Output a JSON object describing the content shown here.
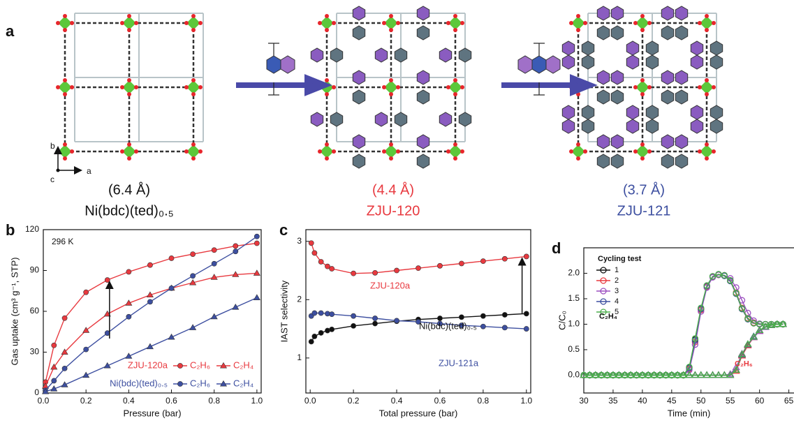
{
  "panel_a": {
    "label": "a",
    "axes": [
      "b",
      "a",
      "c"
    ],
    "structures": [
      {
        "pore": "(6.4 Å)",
        "name": "Ni(bdc)(ted)₀.₅"
      },
      {
        "pore": "(4.4 Å)",
        "name": "ZJU-120"
      },
      {
        "pore": "(3.7 Å)",
        "name": "ZJU-121"
      }
    ]
  },
  "chart_data": [
    {
      "panel": "b",
      "type": "line",
      "annotation": "296 K",
      "xlabel": "Pressure (bar)",
      "ylabel": "Gas uptake (cm³ g⁻¹, STP)",
      "xlim": [
        0,
        1.02
      ],
      "ylim": [
        0,
        120
      ],
      "xticks": [
        {
          "value": 0,
          "label": "0.0"
        },
        0.2,
        0.4,
        0.6,
        0.8,
        {
          "value": 1,
          "label": "1.0"
        }
      ],
      "yticks": [
        0,
        30,
        60,
        90,
        120
      ],
      "x": [
        0.01,
        0.05,
        0.1,
        0.2,
        0.3,
        0.4,
        0.5,
        0.6,
        0.7,
        0.8,
        0.9,
        1.0
      ],
      "legend_groups": [
        "ZJU-120a",
        "Ni(bdc)(ted)₀.₅"
      ],
      "series": [
        {
          "name": "C₂H₆",
          "group": 0,
          "color": "#e8393f",
          "marker": "circle",
          "values": [
            8,
            35,
            55,
            74,
            83,
            89,
            94,
            99,
            102,
            105,
            108,
            110
          ]
        },
        {
          "name": "C₂H₄",
          "group": 0,
          "color": "#e8393f",
          "marker": "triangle",
          "values": [
            5,
            19,
            30,
            46,
            58,
            66,
            72,
            77,
            81,
            85,
            87,
            88
          ]
        },
        {
          "name": "C₂H₆",
          "group": 1,
          "color": "#3d4fa0",
          "marker": "circle",
          "values": [
            2,
            9,
            18,
            32,
            44,
            56,
            67,
            77,
            86,
            95,
            104,
            115
          ]
        },
        {
          "name": "C₂H₄",
          "group": 1,
          "color": "#3d4fa0",
          "marker": "triangle",
          "values": [
            1,
            3,
            6,
            13,
            20,
            27,
            34,
            41,
            48,
            56,
            63,
            70
          ]
        }
      ],
      "arrow": {
        "x": 0.31,
        "from": 40,
        "to": 83
      }
    },
    {
      "panel": "c",
      "type": "line",
      "xlabel": "Total pressure (bar)",
      "ylabel": "IAST selectivity",
      "xlim": [
        -0.02,
        1.02
      ],
      "ylim": [
        0.4,
        3.2
      ],
      "xticks": [
        {
          "value": 0,
          "label": "0.0"
        },
        0.2,
        0.4,
        0.6,
        0.8,
        {
          "value": 1,
          "label": "1.0"
        }
      ],
      "yticks": [
        1,
        2,
        3
      ],
      "x": [
        0.005,
        0.02,
        0.05,
        0.08,
        0.1,
        0.2,
        0.3,
        0.4,
        0.5,
        0.6,
        0.7,
        0.8,
        0.9,
        1.0
      ],
      "series": [
        {
          "name": "ZJU-120a",
          "color": "#e8393f",
          "marker": "circle",
          "values": [
            2.97,
            2.8,
            2.65,
            2.57,
            2.53,
            2.45,
            2.46,
            2.5,
            2.54,
            2.58,
            2.62,
            2.66,
            2.7,
            2.74
          ]
        },
        {
          "name": "Ni(bdc)(ted)₀.₅",
          "color": "#111111",
          "marker": "circle",
          "values": [
            1.28,
            1.37,
            1.43,
            1.47,
            1.49,
            1.55,
            1.59,
            1.63,
            1.66,
            1.68,
            1.7,
            1.72,
            1.74,
            1.76
          ]
        },
        {
          "name": "ZJU-121a",
          "color": "#3d4fa0",
          "marker": "circle",
          "values": [
            1.72,
            1.77,
            1.77,
            1.76,
            1.75,
            1.72,
            1.68,
            1.64,
            1.62,
            1.59,
            1.56,
            1.54,
            1.52,
            1.5
          ]
        }
      ],
      "arrow": {
        "x": 0.98,
        "from": 1.76,
        "to": 2.74
      }
    },
    {
      "panel": "d",
      "type": "line",
      "open_markers": true,
      "xlabel": "Time (min)",
      "ylabel": "C/C₀",
      "legend_title": "Cycling test",
      "xlim": [
        30,
        66
      ],
      "ylim": [
        -0.35,
        2.5
      ],
      "xticks": [
        30,
        35,
        40,
        45,
        50,
        55,
        60,
        65
      ],
      "yticks": [
        {
          "value": 0,
          "label": "0.0"
        },
        0.5,
        {
          "value": 1,
          "label": "1.0"
        },
        1.5,
        {
          "value": 2,
          "label": "2.0"
        }
      ],
      "curve_labels": [
        "C₂H₄",
        "C₂H₆"
      ],
      "curve_markers": [
        "circle",
        "triangle"
      ],
      "x": [
        30,
        31,
        32,
        33,
        34,
        35,
        36,
        37,
        38,
        39,
        40,
        41,
        42,
        43,
        44,
        45,
        46,
        47,
        48,
        49,
        50,
        51,
        52,
        53,
        54,
        55,
        56,
        57,
        58,
        59,
        60,
        61,
        62,
        63,
        64
      ],
      "series": [
        {
          "name": "1",
          "color": "#111111",
          "curves": [
            {
              "values": [
                0,
                0,
                0,
                0,
                0,
                0,
                0,
                0,
                0,
                0,
                0,
                0,
                0,
                0,
                0,
                0,
                0,
                0,
                0.15,
                0.7,
                1.3,
                1.75,
                1.93,
                1.97,
                1.95,
                1.85,
                1.6,
                1.3,
                1.1,
                1.02,
                1.0,
                1.0,
                1.0,
                1.0,
                1.0
              ]
            },
            {
              "values": [
                0,
                0,
                0,
                0,
                0,
                0,
                0,
                0,
                0,
                0,
                0,
                0,
                0,
                0,
                0,
                0,
                0,
                0,
                0,
                0,
                0,
                0,
                0,
                0,
                0,
                0,
                0.1,
                0.4,
                0.6,
                0.75,
                0.88,
                0.95,
                0.98,
                1.0,
                1.0
              ]
            }
          ]
        },
        {
          "name": "2",
          "color": "#e8393f",
          "curves": [
            {
              "values": [
                0,
                0,
                0,
                0,
                0,
                0,
                0,
                0,
                0,
                0,
                0,
                0,
                0,
                0,
                0,
                0,
                0,
                0,
                0.12,
                0.65,
                1.28,
                1.74,
                1.93,
                1.97,
                1.96,
                1.86,
                1.62,
                1.32,
                1.12,
                1.03,
                1.0,
                1.0,
                1.0,
                1.0,
                1.0
              ]
            },
            {
              "values": [
                0,
                0,
                0,
                0,
                0,
                0,
                0,
                0,
                0,
                0,
                0,
                0,
                0,
                0,
                0,
                0,
                0,
                0,
                0,
                0,
                0,
                0,
                0,
                0,
                0,
                0,
                0.08,
                0.38,
                0.58,
                0.74,
                0.87,
                0.95,
                0.98,
                1.0,
                1.0
              ]
            }
          ]
        },
        {
          "name": "3",
          "color": "#9b4fc0",
          "curves": [
            {
              "values": [
                0,
                0,
                0,
                0,
                0,
                0,
                0,
                0,
                0,
                0,
                0,
                0,
                0,
                0,
                0,
                0,
                0,
                0,
                0.1,
                0.6,
                1.25,
                1.72,
                1.92,
                1.97,
                1.96,
                1.9,
                1.72,
                1.47,
                1.22,
                1.07,
                1.01,
                1.0,
                1.0,
                1.0,
                1.0
              ]
            },
            {
              "values": [
                0,
                0,
                0,
                0,
                0,
                0,
                0,
                0,
                0,
                0,
                0,
                0,
                0,
                0,
                0,
                0,
                0,
                0,
                0,
                0,
                0,
                0,
                0,
                0,
                0,
                0.02,
                0.15,
                0.42,
                0.6,
                0.74,
                0.86,
                0.94,
                0.98,
                1.0,
                1.0
              ]
            }
          ]
        },
        {
          "name": "4",
          "color": "#3d4fa0",
          "curves": [
            {
              "values": [
                0,
                0,
                0,
                0,
                0,
                0,
                0,
                0,
                0,
                0,
                0,
                0,
                0,
                0,
                0,
                0,
                0,
                0,
                0.14,
                0.68,
                1.3,
                1.75,
                1.94,
                1.98,
                1.95,
                1.85,
                1.6,
                1.3,
                1.1,
                1.02,
                1.0,
                1.0,
                1.0,
                1.0,
                1.0
              ]
            },
            {
              "values": [
                0,
                0,
                0,
                0,
                0,
                0,
                0,
                0,
                0,
                0,
                0,
                0,
                0,
                0,
                0,
                0,
                0,
                0,
                0,
                0,
                0,
                0,
                0,
                0,
                0,
                0,
                0.1,
                0.4,
                0.6,
                0.76,
                0.88,
                0.95,
                0.98,
                1.0,
                1.0
              ]
            }
          ]
        },
        {
          "name": "5",
          "color": "#4cae4c",
          "curves": [
            {
              "values": [
                0,
                0,
                0,
                0,
                0,
                0,
                0,
                0,
                0,
                0,
                0,
                0,
                0,
                0,
                0,
                0,
                0,
                0,
                0.16,
                0.72,
                1.32,
                1.76,
                1.94,
                1.98,
                1.96,
                1.86,
                1.61,
                1.31,
                1.11,
                1.02,
                1.0,
                1.0,
                1.0,
                1.0,
                1.0
              ]
            },
            {
              "values": [
                0,
                0,
                0,
                0,
                0,
                0,
                0,
                0,
                0,
                0,
                0,
                0,
                0,
                0,
                0,
                0,
                0,
                0,
                0,
                0,
                0,
                0,
                0,
                0,
                0,
                0,
                0.1,
                0.41,
                0.61,
                0.75,
                0.88,
                0.95,
                0.98,
                1.0,
                1.0
              ]
            }
          ]
        }
      ]
    }
  ]
}
